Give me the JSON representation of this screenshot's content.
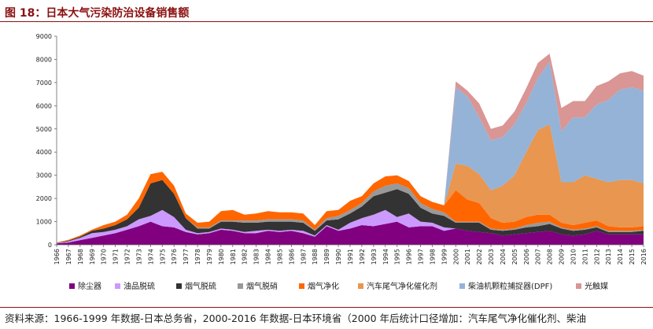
{
  "page_title": "图 18：日本大气污染防治设备销售额",
  "source_note": "资料来源：1966-1999 年数据-日本总务省，2000-2016 年数据-日本环境省（2000 年后统计口径增加：汽车尾气净化催化剂、柴油",
  "chart_data": {
    "type": "area",
    "stacked": true,
    "title": "图 18：日本大气污染防治设备销售额",
    "xlabel": "",
    "ylabel": "",
    "ylim": [
      0,
      9000
    ],
    "yticks": [
      0,
      1000,
      2000,
      3000,
      4000,
      5000,
      6000,
      7000,
      8000,
      9000
    ],
    "legend_position": "bottom",
    "grid": false,
    "x": [
      1966,
      1967,
      1968,
      1969,
      1970,
      1971,
      1972,
      1973,
      1974,
      1975,
      1976,
      1977,
      1978,
      1979,
      1980,
      1981,
      1982,
      1983,
      1984,
      1985,
      1986,
      1987,
      1988,
      1989,
      1990,
      1991,
      1992,
      1993,
      1994,
      1995,
      1996,
      1997,
      1998,
      1999,
      2000,
      2001,
      2002,
      2003,
      2004,
      2005,
      2006,
      2007,
      2008,
      2009,
      2010,
      2011,
      2012,
      2013,
      2014,
      2015,
      2016
    ],
    "series": [
      {
        "name": "除尘器",
        "color": "#800080",
        "values": [
          60,
          100,
          200,
          300,
          400,
          500,
          650,
          800,
          1000,
          800,
          750,
          550,
          450,
          500,
          650,
          600,
          500,
          500,
          600,
          550,
          600,
          500,
          350,
          800,
          600,
          700,
          850,
          800,
          900,
          1000,
          750,
          800,
          800,
          600,
          700,
          600,
          550,
          500,
          400,
          450,
          500,
          550,
          600,
          450,
          400,
          450,
          600,
          450,
          450,
          450,
          450
        ]
      },
      {
        "name": "油品脱硫",
        "color": "#cc99ff",
        "values": [
          10,
          50,
          100,
          200,
          150,
          150,
          150,
          300,
          250,
          700,
          450,
          100,
          50,
          50,
          50,
          50,
          50,
          100,
          50,
          50,
          50,
          100,
          50,
          50,
          50,
          250,
          300,
          500,
          600,
          200,
          600,
          200,
          150,
          150,
          0,
          0,
          0,
          0,
          0,
          0,
          0,
          0,
          0,
          0,
          0,
          0,
          0,
          0,
          0,
          0,
          0
        ]
      },
      {
        "name": "烟气脱硫",
        "color": "#333333",
        "values": [
          10,
          30,
          50,
          100,
          150,
          200,
          300,
          500,
          1400,
          1300,
          1000,
          500,
          200,
          150,
          300,
          350,
          400,
          350,
          350,
          400,
          350,
          350,
          200,
          200,
          450,
          400,
          500,
          800,
          750,
          1200,
          850,
          600,
          400,
          500,
          250,
          350,
          400,
          150,
          200,
          200,
          250,
          250,
          300,
          250,
          200,
          200,
          150,
          100,
          100,
          100,
          150
        ]
      },
      {
        "name": "烟气脱硝",
        "color": "#999999",
        "values": [
          0,
          0,
          0,
          0,
          0,
          0,
          0,
          0,
          0,
          0,
          0,
          0,
          50,
          50,
          50,
          50,
          100,
          100,
          100,
          100,
          100,
          100,
          50,
          100,
          150,
          150,
          150,
          200,
          300,
          250,
          250,
          200,
          200,
          150,
          50,
          50,
          50,
          50,
          50,
          50,
          100,
          150,
          100,
          50,
          50,
          50,
          50,
          50,
          50,
          50,
          50
        ]
      },
      {
        "name": "烟气净化",
        "color": "#ff6600",
        "values": [
          20,
          30,
          50,
          50,
          150,
          150,
          200,
          400,
          400,
          350,
          350,
          200,
          200,
          250,
          400,
          450,
          250,
          300,
          350,
          300,
          300,
          300,
          200,
          300,
          250,
          400,
          300,
          350,
          400,
          350,
          300,
          300,
          300,
          300,
          1350,
          950,
          800,
          450,
          300,
          300,
          350,
          350,
          300,
          200,
          200,
          250,
          250,
          200,
          150,
          150,
          150
        ]
      },
      {
        "name": "汽车尾气净化催化剂",
        "color": "#e89650",
        "values": [
          0,
          0,
          0,
          0,
          0,
          0,
          0,
          0,
          0,
          0,
          0,
          0,
          0,
          0,
          0,
          0,
          0,
          0,
          0,
          0,
          0,
          0,
          0,
          0,
          0,
          0,
          0,
          0,
          0,
          0,
          0,
          0,
          0,
          0,
          1150,
          1450,
          1250,
          1200,
          1600,
          2000,
          2800,
          3650,
          3900,
          1750,
          1850,
          2050,
          1800,
          1900,
          2050,
          2050,
          1850
        ]
      },
      {
        "name": "柴油机颗粒捕捉器(DPF)",
        "color": "#95b3d7",
        "values": [
          0,
          0,
          0,
          0,
          0,
          0,
          0,
          0,
          0,
          0,
          0,
          0,
          0,
          0,
          0,
          0,
          0,
          0,
          0,
          0,
          0,
          0,
          0,
          0,
          0,
          0,
          0,
          0,
          0,
          0,
          0,
          0,
          0,
          0,
          3300,
          3000,
          2450,
          2150,
          2100,
          2200,
          2100,
          2250,
          2700,
          2200,
          2800,
          2500,
          3200,
          3550,
          3900,
          4000,
          4000
        ]
      },
      {
        "name": "光触媒",
        "color": "#d99694",
        "values": [
          0,
          0,
          0,
          0,
          0,
          0,
          0,
          0,
          0,
          0,
          0,
          0,
          0,
          0,
          0,
          0,
          0,
          0,
          0,
          0,
          0,
          0,
          0,
          0,
          0,
          0,
          0,
          0,
          0,
          0,
          0,
          0,
          0,
          0,
          250,
          250,
          600,
          500,
          500,
          550,
          650,
          650,
          350,
          1000,
          700,
          700,
          800,
          800,
          700,
          700,
          650
        ]
      }
    ]
  }
}
